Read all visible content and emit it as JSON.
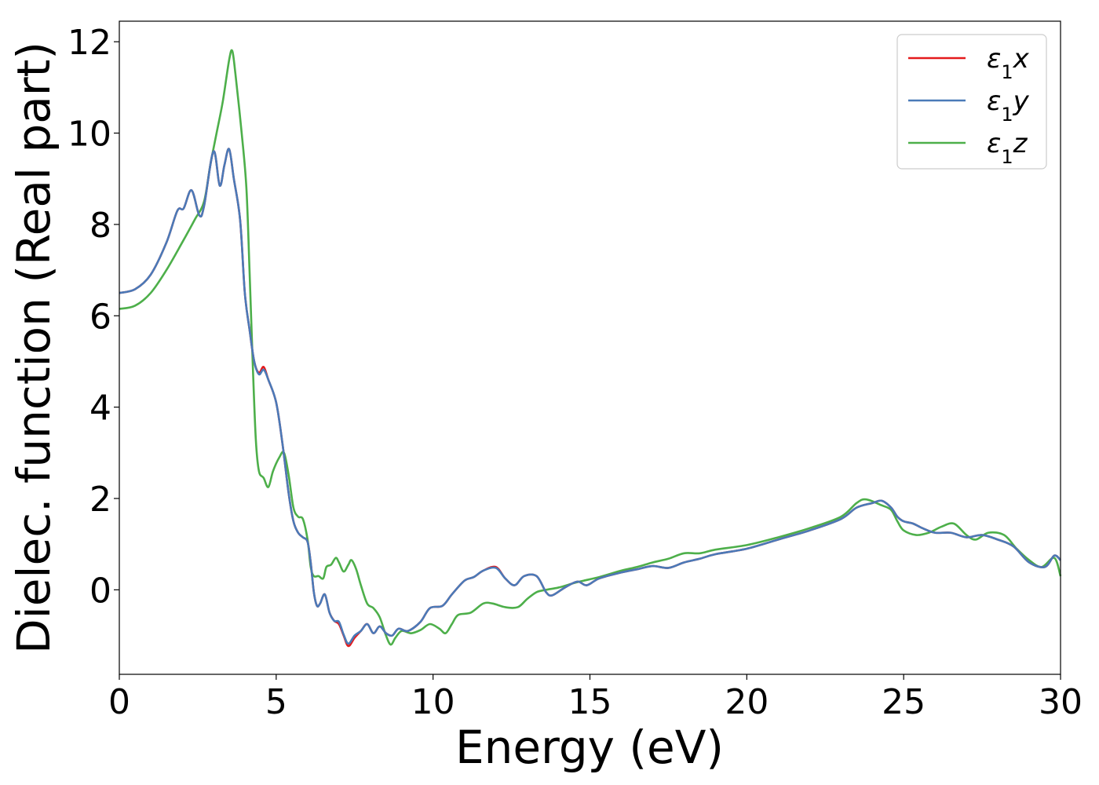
{
  "chart_data": {
    "type": "line",
    "title": "",
    "xlabel": "Energy (eV)",
    "ylabel": "Dielec. function (Real part)",
    "xlim": [
      0,
      30
    ],
    "ylim": [
      -1.85,
      12.45
    ],
    "xticks": [
      0,
      5,
      10,
      15,
      20,
      25,
      30
    ],
    "yticks": [
      0,
      2,
      4,
      6,
      8,
      10,
      12
    ],
    "grid": false,
    "legend_position": "top-right",
    "series": [
      {
        "name": "ε₁x",
        "legend_main": "ε",
        "legend_sub": "1",
        "legend_tail": "x",
        "color": "#e41a1c",
        "points": [
          [
            0,
            6.5
          ],
          [
            0.5,
            6.58
          ],
          [
            1.0,
            6.9
          ],
          [
            1.5,
            7.6
          ],
          [
            1.85,
            8.3
          ],
          [
            2.05,
            8.35
          ],
          [
            2.3,
            8.75
          ],
          [
            2.55,
            8.2
          ],
          [
            2.7,
            8.4
          ],
          [
            3.0,
            9.6
          ],
          [
            3.2,
            8.85
          ],
          [
            3.35,
            9.3
          ],
          [
            3.5,
            9.65
          ],
          [
            3.65,
            9.0
          ],
          [
            3.85,
            8.1
          ],
          [
            4.0,
            6.5
          ],
          [
            4.15,
            5.7
          ],
          [
            4.3,
            5.0
          ],
          [
            4.45,
            4.75
          ],
          [
            4.6,
            4.88
          ],
          [
            4.75,
            4.6
          ],
          [
            5.0,
            4.1
          ],
          [
            5.2,
            3.2
          ],
          [
            5.4,
            2.1
          ],
          [
            5.55,
            1.5
          ],
          [
            5.7,
            1.25
          ],
          [
            5.85,
            1.15
          ],
          [
            6.0,
            1.05
          ],
          [
            6.1,
            0.6
          ],
          [
            6.2,
            -0.05
          ],
          [
            6.3,
            -0.35
          ],
          [
            6.4,
            -0.3
          ],
          [
            6.55,
            -0.1
          ],
          [
            6.7,
            -0.5
          ],
          [
            6.85,
            -0.68
          ],
          [
            7.0,
            -0.75
          ],
          [
            7.15,
            -1.0
          ],
          [
            7.3,
            -1.23
          ],
          [
            7.5,
            -1.05
          ],
          [
            7.7,
            -0.9
          ],
          [
            7.9,
            -0.75
          ],
          [
            8.1,
            -0.95
          ],
          [
            8.3,
            -0.8
          ],
          [
            8.5,
            -0.95
          ],
          [
            8.7,
            -1.0
          ],
          [
            8.9,
            -0.85
          ],
          [
            9.2,
            -0.9
          ],
          [
            9.6,
            -0.7
          ],
          [
            9.9,
            -0.4
          ],
          [
            10.3,
            -0.35
          ],
          [
            10.6,
            -0.1
          ],
          [
            11.0,
            0.2
          ],
          [
            11.3,
            0.28
          ],
          [
            11.6,
            0.42
          ],
          [
            12.0,
            0.5
          ],
          [
            12.3,
            0.25
          ],
          [
            12.6,
            0.1
          ],
          [
            12.9,
            0.3
          ],
          [
            13.3,
            0.3
          ],
          [
            13.6,
            -0.05
          ],
          [
            13.8,
            -0.12
          ],
          [
            14.2,
            0.05
          ],
          [
            14.6,
            0.18
          ],
          [
            14.9,
            0.1
          ],
          [
            15.3,
            0.25
          ],
          [
            16.0,
            0.38
          ],
          [
            16.5,
            0.45
          ],
          [
            17.0,
            0.52
          ],
          [
            17.5,
            0.48
          ],
          [
            18.0,
            0.6
          ],
          [
            18.5,
            0.68
          ],
          [
            19.0,
            0.78
          ],
          [
            20.0,
            0.9
          ],
          [
            21.0,
            1.1
          ],
          [
            22.0,
            1.3
          ],
          [
            23.0,
            1.55
          ],
          [
            23.5,
            1.8
          ],
          [
            24.0,
            1.9
          ],
          [
            24.3,
            1.95
          ],
          [
            24.6,
            1.8
          ],
          [
            24.8,
            1.6
          ],
          [
            25.0,
            1.5
          ],
          [
            25.3,
            1.45
          ],
          [
            25.6,
            1.35
          ],
          [
            26.0,
            1.25
          ],
          [
            26.5,
            1.25
          ],
          [
            27.0,
            1.15
          ],
          [
            27.5,
            1.2
          ],
          [
            28.0,
            1.1
          ],
          [
            28.5,
            0.95
          ],
          [
            29.0,
            0.6
          ],
          [
            29.5,
            0.5
          ],
          [
            29.8,
            0.75
          ],
          [
            30.0,
            0.65
          ]
        ]
      },
      {
        "name": "ε₁y",
        "legend_main": "ε",
        "legend_sub": "1",
        "legend_tail": "y",
        "color": "#4a7ab8",
        "points": [
          [
            0,
            6.5
          ],
          [
            0.5,
            6.58
          ],
          [
            1.0,
            6.9
          ],
          [
            1.5,
            7.6
          ],
          [
            1.85,
            8.3
          ],
          [
            2.05,
            8.35
          ],
          [
            2.3,
            8.75
          ],
          [
            2.55,
            8.2
          ],
          [
            2.7,
            8.4
          ],
          [
            3.0,
            9.6
          ],
          [
            3.2,
            8.85
          ],
          [
            3.35,
            9.3
          ],
          [
            3.5,
            9.65
          ],
          [
            3.65,
            9.0
          ],
          [
            3.85,
            8.1
          ],
          [
            4.0,
            6.5
          ],
          [
            4.15,
            5.7
          ],
          [
            4.3,
            5.0
          ],
          [
            4.45,
            4.72
          ],
          [
            4.6,
            4.82
          ],
          [
            4.75,
            4.6
          ],
          [
            5.0,
            4.1
          ],
          [
            5.2,
            3.2
          ],
          [
            5.4,
            2.1
          ],
          [
            5.55,
            1.5
          ],
          [
            5.7,
            1.25
          ],
          [
            5.85,
            1.15
          ],
          [
            6.0,
            1.05
          ],
          [
            6.1,
            0.6
          ],
          [
            6.2,
            -0.05
          ],
          [
            6.3,
            -0.35
          ],
          [
            6.4,
            -0.3
          ],
          [
            6.55,
            -0.1
          ],
          [
            6.7,
            -0.5
          ],
          [
            6.85,
            -0.68
          ],
          [
            7.0,
            -0.7
          ],
          [
            7.15,
            -0.98
          ],
          [
            7.3,
            -1.18
          ],
          [
            7.5,
            -1.0
          ],
          [
            7.7,
            -0.9
          ],
          [
            7.9,
            -0.75
          ],
          [
            8.1,
            -0.95
          ],
          [
            8.3,
            -0.8
          ],
          [
            8.5,
            -0.95
          ],
          [
            8.7,
            -1.0
          ],
          [
            8.9,
            -0.85
          ],
          [
            9.2,
            -0.9
          ],
          [
            9.6,
            -0.7
          ],
          [
            9.9,
            -0.4
          ],
          [
            10.3,
            -0.35
          ],
          [
            10.6,
            -0.1
          ],
          [
            11.0,
            0.2
          ],
          [
            11.3,
            0.28
          ],
          [
            11.6,
            0.42
          ],
          [
            12.0,
            0.48
          ],
          [
            12.3,
            0.25
          ],
          [
            12.6,
            0.1
          ],
          [
            12.9,
            0.3
          ],
          [
            13.3,
            0.3
          ],
          [
            13.6,
            -0.05
          ],
          [
            13.8,
            -0.12
          ],
          [
            14.2,
            0.05
          ],
          [
            14.6,
            0.18
          ],
          [
            14.9,
            0.1
          ],
          [
            15.3,
            0.25
          ],
          [
            16.0,
            0.38
          ],
          [
            16.5,
            0.45
          ],
          [
            17.0,
            0.52
          ],
          [
            17.5,
            0.48
          ],
          [
            18.0,
            0.6
          ],
          [
            18.5,
            0.68
          ],
          [
            19.0,
            0.78
          ],
          [
            20.0,
            0.9
          ],
          [
            21.0,
            1.1
          ],
          [
            22.0,
            1.3
          ],
          [
            23.0,
            1.55
          ],
          [
            23.5,
            1.8
          ],
          [
            24.0,
            1.9
          ],
          [
            24.3,
            1.95
          ],
          [
            24.6,
            1.8
          ],
          [
            24.8,
            1.6
          ],
          [
            25.0,
            1.5
          ],
          [
            25.3,
            1.45
          ],
          [
            25.6,
            1.35
          ],
          [
            26.0,
            1.25
          ],
          [
            26.5,
            1.25
          ],
          [
            27.0,
            1.15
          ],
          [
            27.5,
            1.2
          ],
          [
            28.0,
            1.1
          ],
          [
            28.5,
            0.95
          ],
          [
            29.0,
            0.6
          ],
          [
            29.5,
            0.5
          ],
          [
            29.8,
            0.75
          ],
          [
            30.0,
            0.65
          ]
        ]
      },
      {
        "name": "ε₁z",
        "legend_main": "ε",
        "legend_sub": "1",
        "legend_tail": "z",
        "color": "#4daf4a",
        "points": [
          [
            0,
            6.15
          ],
          [
            0.5,
            6.22
          ],
          [
            1.0,
            6.5
          ],
          [
            1.5,
            7.0
          ],
          [
            2.0,
            7.6
          ],
          [
            2.4,
            8.1
          ],
          [
            2.7,
            8.5
          ],
          [
            2.9,
            9.3
          ],
          [
            3.1,
            10.0
          ],
          [
            3.3,
            10.7
          ],
          [
            3.5,
            11.6
          ],
          [
            3.6,
            11.8
          ],
          [
            3.7,
            11.3
          ],
          [
            3.9,
            10.0
          ],
          [
            4.05,
            8.8
          ],
          [
            4.15,
            7.0
          ],
          [
            4.25,
            5.0
          ],
          [
            4.35,
            3.3
          ],
          [
            4.45,
            2.6
          ],
          [
            4.6,
            2.45
          ],
          [
            4.75,
            2.25
          ],
          [
            4.9,
            2.6
          ],
          [
            5.1,
            2.9
          ],
          [
            5.25,
            3.0
          ],
          [
            5.4,
            2.5
          ],
          [
            5.55,
            1.8
          ],
          [
            5.7,
            1.6
          ],
          [
            5.85,
            1.55
          ],
          [
            6.0,
            1.1
          ],
          [
            6.1,
            0.5
          ],
          [
            6.2,
            0.3
          ],
          [
            6.35,
            0.3
          ],
          [
            6.5,
            0.25
          ],
          [
            6.6,
            0.5
          ],
          [
            6.75,
            0.55
          ],
          [
            6.9,
            0.7
          ],
          [
            7.0,
            0.6
          ],
          [
            7.15,
            0.4
          ],
          [
            7.3,
            0.55
          ],
          [
            7.4,
            0.65
          ],
          [
            7.55,
            0.45
          ],
          [
            7.7,
            0.1
          ],
          [
            7.9,
            -0.3
          ],
          [
            8.1,
            -0.4
          ],
          [
            8.3,
            -0.6
          ],
          [
            8.5,
            -1.0
          ],
          [
            8.65,
            -1.2
          ],
          [
            8.8,
            -1.05
          ],
          [
            9.0,
            -0.9
          ],
          [
            9.3,
            -0.95
          ],
          [
            9.6,
            -0.88
          ],
          [
            9.9,
            -0.75
          ],
          [
            10.2,
            -0.85
          ],
          [
            10.4,
            -0.95
          ],
          [
            10.6,
            -0.75
          ],
          [
            10.8,
            -0.55
          ],
          [
            11.2,
            -0.5
          ],
          [
            11.6,
            -0.3
          ],
          [
            11.9,
            -0.3
          ],
          [
            12.3,
            -0.38
          ],
          [
            12.7,
            -0.38
          ],
          [
            13.0,
            -0.2
          ],
          [
            13.3,
            -0.05
          ],
          [
            13.6,
            0.0
          ],
          [
            14.0,
            0.05
          ],
          [
            14.5,
            0.15
          ],
          [
            14.8,
            0.2
          ],
          [
            15.3,
            0.28
          ],
          [
            16.0,
            0.42
          ],
          [
            16.5,
            0.5
          ],
          [
            17.0,
            0.6
          ],
          [
            17.5,
            0.68
          ],
          [
            18.0,
            0.8
          ],
          [
            18.5,
            0.8
          ],
          [
            19.0,
            0.88
          ],
          [
            20.0,
            0.98
          ],
          [
            21.0,
            1.15
          ],
          [
            22.0,
            1.35
          ],
          [
            23.0,
            1.6
          ],
          [
            23.5,
            1.9
          ],
          [
            23.8,
            1.98
          ],
          [
            24.3,
            1.85
          ],
          [
            24.6,
            1.75
          ],
          [
            24.8,
            1.5
          ],
          [
            25.0,
            1.3
          ],
          [
            25.4,
            1.2
          ],
          [
            25.8,
            1.25
          ],
          [
            26.2,
            1.38
          ],
          [
            26.6,
            1.45
          ],
          [
            27.0,
            1.2
          ],
          [
            27.3,
            1.1
          ],
          [
            27.7,
            1.25
          ],
          [
            28.2,
            1.2
          ],
          [
            28.6,
            0.9
          ],
          [
            29.0,
            0.65
          ],
          [
            29.4,
            0.5
          ],
          [
            29.8,
            0.7
          ],
          [
            30.0,
            0.3
          ]
        ]
      }
    ]
  }
}
